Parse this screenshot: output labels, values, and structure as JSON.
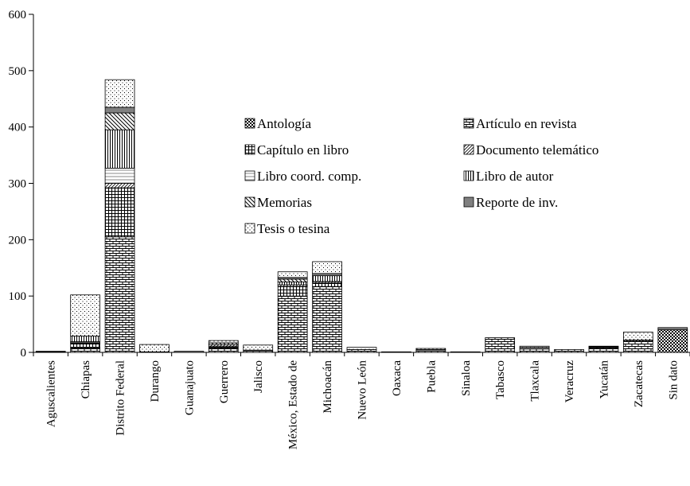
{
  "chart_data": {
    "type": "stacked_bar",
    "categories": [
      "Aguscalientes",
      "Chiapas",
      "Distrito Federal",
      "Durango",
      "Guanajuato",
      "Guerrero",
      "Jalisco",
      "México, Estado de",
      "Michoacán",
      "Nuevo León",
      "Oaxaca",
      "Puebla",
      "Sinaloa",
      "Tabasco",
      "Tlaxcala",
      "Veracruz",
      "Yucatán",
      "Zacatecas",
      "Sin dato"
    ],
    "series": [
      {
        "name": "Antología",
        "color": "#000000",
        "values": [
          0,
          0,
          0,
          0,
          0,
          0,
          0,
          0,
          0,
          0,
          0,
          0,
          0,
          0,
          0,
          0,
          0,
          0,
          40
        ]
      },
      {
        "name": "Artículo en revista",
        "color": "#000000",
        "values": [
          1,
          8,
          205,
          1,
          0,
          8,
          2,
          100,
          117,
          5,
          0,
          2,
          0,
          26,
          6,
          5,
          8,
          20,
          0
        ]
      },
      {
        "name": "Capítulo en libro",
        "color": "#000000",
        "values": [
          0,
          8,
          87,
          0,
          0,
          3,
          0,
          17,
          7,
          0,
          0,
          0,
          0,
          0,
          0,
          0,
          2,
          0,
          0
        ]
      },
      {
        "name": "Documento telemático",
        "color": "#000000",
        "values": [
          0,
          1,
          8,
          0,
          0,
          3,
          0,
          3,
          2,
          0,
          0,
          0,
          0,
          0,
          0,
          0,
          0,
          2,
          0
        ]
      },
      {
        "name": "Libro coord. comp.",
        "color": "#000000",
        "values": [
          0,
          2,
          27,
          0,
          0,
          0,
          0,
          0,
          0,
          0,
          0,
          0,
          0,
          0,
          0,
          0,
          0,
          0,
          0
        ]
      },
      {
        "name": "Libro de autor",
        "color": "#000000",
        "values": [
          0,
          10,
          68,
          0,
          0,
          0,
          0,
          5,
          10,
          0,
          0,
          0,
          0,
          0,
          0,
          0,
          0,
          0,
          0
        ]
      },
      {
        "name": "Memorias",
        "color": "#000000",
        "values": [
          0,
          0,
          30,
          0,
          0,
          3,
          0,
          5,
          0,
          0,
          0,
          0,
          0,
          0,
          0,
          0,
          0,
          0,
          0
        ]
      },
      {
        "name": "Reporte de inv.",
        "color": "#808080",
        "values": [
          1,
          0,
          10,
          0,
          2,
          0,
          2,
          3,
          4,
          0,
          0,
          3,
          0,
          0,
          3,
          0,
          0,
          0,
          4
        ]
      },
      {
        "name": "Tesis o tesina",
        "color": "#000000",
        "values": [
          0,
          73,
          49,
          13,
          0,
          4,
          9,
          10,
          21,
          4,
          1,
          2,
          1,
          0,
          2,
          0,
          1,
          14,
          0
        ]
      }
    ],
    "ylim": [
      0,
      600
    ],
    "yticks": [
      0,
      100,
      200,
      300,
      400,
      500,
      600
    ]
  }
}
